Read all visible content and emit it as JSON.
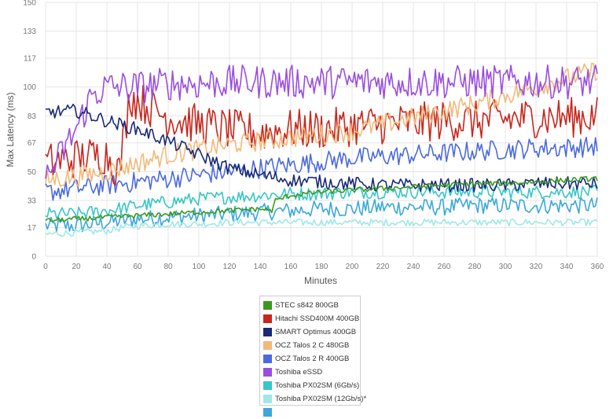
{
  "chart_data": {
    "type": "line",
    "title": "",
    "xlabel": "Minutes",
    "ylabel": "Max Latency (ms)",
    "xlim": [
      0,
      360
    ],
    "ylim": [
      0,
      150
    ],
    "x_ticks": [
      0,
      20,
      40,
      60,
      80,
      100,
      120,
      140,
      160,
      180,
      200,
      220,
      240,
      260,
      280,
      300,
      320,
      340,
      360
    ],
    "y_ticks": [
      0,
      17,
      33,
      50,
      67,
      83,
      100,
      117,
      133,
      150
    ],
    "grid": true,
    "legend_position": "bottom",
    "series": [
      {
        "name": "STEC s842 800GB",
        "color": "#3a9a1e",
        "jitter": 1.5,
        "values": [
          [
            0,
            21
          ],
          [
            20,
            22
          ],
          [
            40,
            23
          ],
          [
            60,
            24
          ],
          [
            80,
            25
          ],
          [
            100,
            26
          ],
          [
            120,
            27
          ],
          [
            140,
            28
          ],
          [
            148,
            27
          ],
          [
            150,
            33
          ],
          [
            160,
            36
          ],
          [
            180,
            38
          ],
          [
            200,
            39
          ],
          [
            220,
            40
          ],
          [
            240,
            41
          ],
          [
            260,
            42
          ],
          [
            280,
            43
          ],
          [
            300,
            43
          ],
          [
            320,
            44
          ],
          [
            340,
            45
          ],
          [
            360,
            46
          ]
        ]
      },
      {
        "name": "Hitachi SSD400M 400GB",
        "color": "#c9261c",
        "jitter": 12,
        "values": [
          [
            0,
            55
          ],
          [
            20,
            58
          ],
          [
            40,
            60
          ],
          [
            48,
            50
          ],
          [
            55,
            95
          ],
          [
            60,
            92
          ],
          [
            80,
            82
          ],
          [
            100,
            78
          ],
          [
            120,
            75
          ],
          [
            140,
            73
          ],
          [
            160,
            75
          ],
          [
            180,
            75
          ],
          [
            200,
            77
          ],
          [
            220,
            78
          ],
          [
            240,
            79
          ],
          [
            260,
            80
          ],
          [
            280,
            80
          ],
          [
            300,
            81
          ],
          [
            320,
            82
          ],
          [
            340,
            82
          ],
          [
            360,
            83
          ]
        ]
      },
      {
        "name": "SMART Optimus 400GB",
        "color": "#182a78",
        "jitter": 4,
        "values": [
          [
            0,
            85
          ],
          [
            20,
            86
          ],
          [
            40,
            80
          ],
          [
            60,
            75
          ],
          [
            80,
            68
          ],
          [
            100,
            60
          ],
          [
            120,
            52
          ],
          [
            140,
            48
          ],
          [
            160,
            45
          ],
          [
            180,
            44
          ],
          [
            200,
            43
          ],
          [
            220,
            42
          ],
          [
            240,
            42
          ],
          [
            260,
            42
          ],
          [
            280,
            42
          ],
          [
            300,
            42
          ],
          [
            320,
            43
          ],
          [
            340,
            43
          ],
          [
            360,
            43
          ]
        ]
      },
      {
        "name": "OCZ Talos 2 C 480GB",
        "color": "#f2b97a",
        "jitter": 6,
        "values": [
          [
            0,
            45
          ],
          [
            20,
            47
          ],
          [
            40,
            50
          ],
          [
            60,
            55
          ],
          [
            80,
            60
          ],
          [
            100,
            63
          ],
          [
            120,
            66
          ],
          [
            140,
            68
          ],
          [
            160,
            70
          ],
          [
            180,
            72
          ],
          [
            200,
            74
          ],
          [
            220,
            78
          ],
          [
            240,
            82
          ],
          [
            260,
            86
          ],
          [
            280,
            90
          ],
          [
            300,
            95
          ],
          [
            320,
            100
          ],
          [
            340,
            105
          ],
          [
            360,
            110
          ]
        ]
      },
      {
        "name": "OCZ Talos 2 R 400GB",
        "color": "#4a6ae0",
        "jitter": 6,
        "values": [
          [
            0,
            38
          ],
          [
            20,
            40
          ],
          [
            40,
            42
          ],
          [
            60,
            44
          ],
          [
            80,
            46
          ],
          [
            100,
            48
          ],
          [
            120,
            50
          ],
          [
            140,
            52
          ],
          [
            160,
            54
          ],
          [
            180,
            56
          ],
          [
            200,
            58
          ],
          [
            220,
            59
          ],
          [
            240,
            60
          ],
          [
            260,
            61
          ],
          [
            280,
            62
          ],
          [
            300,
            63
          ],
          [
            320,
            64
          ],
          [
            340,
            64
          ],
          [
            360,
            65
          ]
        ]
      },
      {
        "name": "Toshiba eSSD",
        "color": "#9a4ee0",
        "jitter": 10,
        "values": [
          [
            0,
            45
          ],
          [
            20,
            75
          ],
          [
            30,
            95
          ],
          [
            40,
            100
          ],
          [
            60,
            100
          ],
          [
            80,
            102
          ],
          [
            100,
            102
          ],
          [
            120,
            103
          ],
          [
            140,
            103
          ],
          [
            160,
            103
          ],
          [
            180,
            103
          ],
          [
            200,
            103
          ],
          [
            220,
            103
          ],
          [
            240,
            103
          ],
          [
            260,
            103
          ],
          [
            280,
            103
          ],
          [
            300,
            103
          ],
          [
            320,
            103
          ],
          [
            340,
            103
          ],
          [
            360,
            103
          ]
        ]
      },
      {
        "name": "Toshiba PX02SM (6Gb/s)",
        "color": "#38c6c6",
        "jitter": 4,
        "values": [
          [
            0,
            25
          ],
          [
            20,
            25
          ],
          [
            40,
            27
          ],
          [
            60,
            30
          ],
          [
            80,
            32
          ],
          [
            100,
            34
          ],
          [
            120,
            35
          ],
          [
            140,
            36
          ],
          [
            160,
            37
          ],
          [
            180,
            37
          ],
          [
            200,
            38
          ],
          [
            220,
            38
          ],
          [
            240,
            38
          ],
          [
            260,
            38
          ],
          [
            280,
            38
          ],
          [
            300,
            38
          ],
          [
            320,
            38
          ],
          [
            340,
            38
          ],
          [
            360,
            38
          ]
        ]
      },
      {
        "name": "Toshiba PX02SM (12Gb/s)*",
        "color": "#9ee8e6",
        "jitter": 2,
        "values": [
          [
            0,
            13
          ],
          [
            20,
            14
          ],
          [
            40,
            15
          ],
          [
            50,
            17
          ],
          [
            60,
            18
          ],
          [
            80,
            19
          ],
          [
            100,
            19
          ],
          [
            120,
            20
          ],
          [
            140,
            20
          ],
          [
            160,
            20
          ],
          [
            180,
            20
          ],
          [
            200,
            20
          ],
          [
            220,
            20
          ],
          [
            240,
            20
          ],
          [
            260,
            20
          ],
          [
            280,
            20
          ],
          [
            300,
            20
          ],
          [
            320,
            20
          ],
          [
            340,
            20
          ],
          [
            360,
            20
          ]
        ]
      },
      {
        "name": "",
        "color": "#3aa8dc",
        "jitter": 5,
        "values": [
          [
            0,
            18
          ],
          [
            20,
            18
          ],
          [
            40,
            20
          ],
          [
            60,
            22
          ],
          [
            80,
            23
          ],
          [
            100,
            24
          ],
          [
            120,
            25
          ],
          [
            140,
            26
          ],
          [
            160,
            27
          ],
          [
            180,
            28
          ],
          [
            200,
            28
          ],
          [
            220,
            29
          ],
          [
            240,
            29
          ],
          [
            260,
            29
          ],
          [
            280,
            30
          ],
          [
            300,
            30
          ],
          [
            320,
            30
          ],
          [
            340,
            30
          ],
          [
            360,
            30
          ]
        ]
      }
    ]
  }
}
